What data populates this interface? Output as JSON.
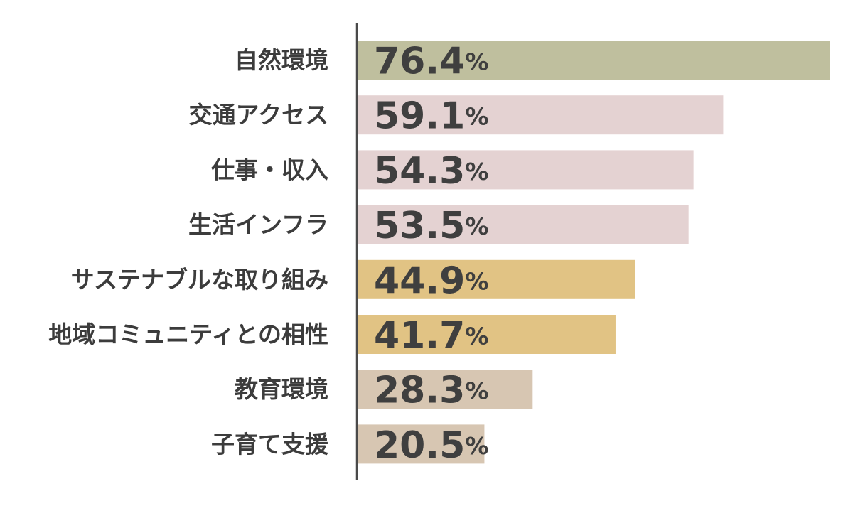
{
  "chart_data": {
    "type": "bar",
    "orientation": "horizontal",
    "categories": [
      "自然環境",
      "交通アクセス",
      "仕事・収入",
      "生活インフラ",
      "サステナブルな取り組み",
      "地域コミュニティとの相性",
      "教育環境",
      "子育て支援"
    ],
    "values": [
      76.4,
      59.1,
      54.3,
      53.5,
      44.9,
      41.7,
      28.3,
      20.5
    ],
    "value_labels": [
      "76.4",
      "59.1",
      "54.3",
      "53.5",
      "44.9",
      "41.7",
      "28.3",
      "20.5"
    ],
    "value_unit": "%",
    "bar_colors": [
      "#bfbf9e",
      "#e4d2d2",
      "#e4d2d2",
      "#e4d2d2",
      "#e1c384",
      "#e1c384",
      "#d7c6b2",
      "#d7c6b2"
    ],
    "xlim": [
      0,
      76.4
    ],
    "grid": false,
    "legend": "none"
  }
}
